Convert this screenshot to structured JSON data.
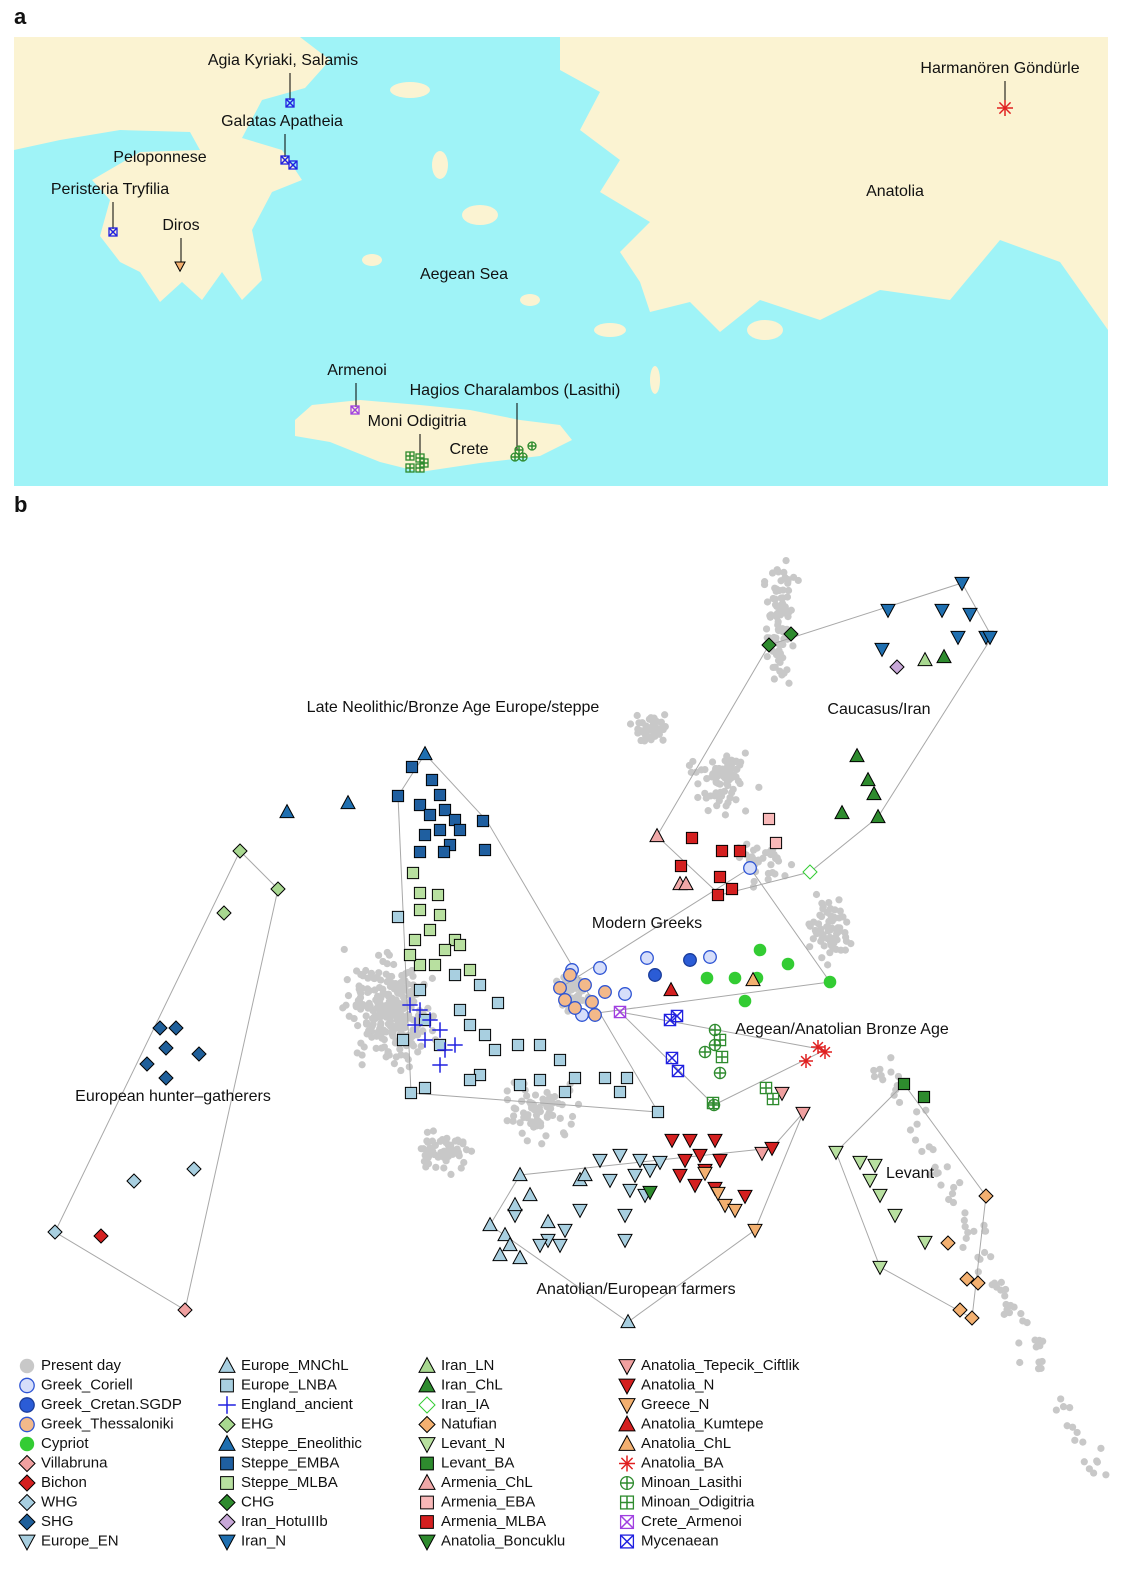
{
  "panel_a": {
    "label": "a",
    "labels": [
      "Agia Kyriaki, Salamis",
      "Galatas Apatheia",
      "Peloponnese",
      "Peristeria Tryfilia",
      "Diros",
      "Aegean Sea",
      "Armenoi",
      "Moni Odigitria",
      "Crete",
      "Hagios Charalambos (Lasithi)",
      "Harmanören Göndürle",
      "Anatolia"
    ]
  },
  "panel_b": {
    "label": "b",
    "regions": [
      "Late Neolithic/Bronze Age Europe/steppe",
      "Caucasus/Iran",
      "Modern Greeks",
      "Aegean/Anatolian Bronze Age",
      "European hunter–gatherers",
      "Levant",
      "Anatolian/European farmers"
    ],
    "legend": [
      {
        "name": "Present day",
        "marker": "circle",
        "color": "#c8c8c8",
        "edge": "none"
      },
      {
        "name": "Greek_Coriell",
        "marker": "circle",
        "color": "#d6defa",
        "edge": "#2f55d4"
      },
      {
        "name": "Greek_Cretan.SGDP",
        "marker": "circle",
        "color": "#2b5cd6",
        "edge": "#1a3c9a"
      },
      {
        "name": "Greek_Thessaloniki",
        "marker": "circle",
        "color": "#f3b98a",
        "edge": "#2f55d4"
      },
      {
        "name": "Cypriot",
        "marker": "circle",
        "color": "#33cc33",
        "edge": "none"
      },
      {
        "name": "Villabruna",
        "marker": "diamond",
        "color": "#f0a0a0",
        "edge": "#000"
      },
      {
        "name": "Bichon",
        "marker": "diamond",
        "color": "#d42020",
        "edge": "#000"
      },
      {
        "name": "WHG",
        "marker": "diamond",
        "color": "#a8cfe0",
        "edge": "#000"
      },
      {
        "name": "SHG",
        "marker": "diamond",
        "color": "#1f5f9a",
        "edge": "#000"
      },
      {
        "name": "Europe_EN",
        "marker": "tri-down",
        "color": "#a8cfe0",
        "edge": "#000"
      },
      {
        "name": "Europe_MNChL",
        "marker": "tri-up",
        "color": "#a8cfe0",
        "edge": "#000"
      },
      {
        "name": "Europe_LNBA",
        "marker": "square",
        "color": "#a8cfe0",
        "edge": "#000"
      },
      {
        "name": "England_ancient",
        "marker": "plus",
        "color": "#2020e0",
        "edge": "none"
      },
      {
        "name": "EHG",
        "marker": "diamond",
        "color": "#a8d890",
        "edge": "#000"
      },
      {
        "name": "Steppe_Eneolithic",
        "marker": "tri-up",
        "color": "#1f6fb0",
        "edge": "#000"
      },
      {
        "name": "Steppe_EMBA",
        "marker": "square",
        "color": "#1f5fa0",
        "edge": "#000"
      },
      {
        "name": "Steppe_MLBA",
        "marker": "square",
        "color": "#b8e0a0",
        "edge": "#000"
      },
      {
        "name": "CHG",
        "marker": "diamond",
        "color": "#2e8b2e",
        "edge": "#000"
      },
      {
        "name": "Iran_HotuIIIb",
        "marker": "diamond",
        "color": "#c8a8d8",
        "edge": "#000"
      },
      {
        "name": "Iran_N",
        "marker": "tri-down",
        "color": "#1f6fb0",
        "edge": "#000"
      },
      {
        "name": "Iran_LN",
        "marker": "tri-up",
        "color": "#a8d890",
        "edge": "#000"
      },
      {
        "name": "Iran_ChL",
        "marker": "tri-up",
        "color": "#2e8b2e",
        "edge": "#000"
      },
      {
        "name": "Iran_IA",
        "marker": "diamond",
        "color": "#ffffff",
        "edge": "#33cc33"
      },
      {
        "name": "Natufian",
        "marker": "diamond",
        "color": "#f3b070",
        "edge": "#000"
      },
      {
        "name": "Levant_N",
        "marker": "tri-down",
        "color": "#b8e0a0",
        "edge": "#000"
      },
      {
        "name": "Levant_BA",
        "marker": "square",
        "color": "#2e8b2e",
        "edge": "#000"
      },
      {
        "name": "Armenia_ChL",
        "marker": "tri-up",
        "color": "#f0a8a8",
        "edge": "#000"
      },
      {
        "name": "Armenia_EBA",
        "marker": "square",
        "color": "#f8b8b8",
        "edge": "#000"
      },
      {
        "name": "Armenia_MLBA",
        "marker": "square",
        "color": "#d42020",
        "edge": "#000"
      },
      {
        "name": "Anatolia_Boncuklu",
        "marker": "tri-down",
        "color": "#2e8b2e",
        "edge": "#000"
      },
      {
        "name": "Anatolia_Tepecik_Ciftlik",
        "marker": "tri-down",
        "color": "#f0a0a0",
        "edge": "#000"
      },
      {
        "name": "Anatolia_N",
        "marker": "tri-down",
        "color": "#d42020",
        "edge": "#000"
      },
      {
        "name": "Greece_N",
        "marker": "tri-down",
        "color": "#f3b070",
        "edge": "#000"
      },
      {
        "name": "Anatolia_Kumtepe",
        "marker": "tri-up",
        "color": "#d42020",
        "edge": "#000"
      },
      {
        "name": "Anatolia_ChL",
        "marker": "tri-up",
        "color": "#f3b070",
        "edge": "#000"
      },
      {
        "name": "Anatolia_BA",
        "marker": "asterisk",
        "color": "#e02020",
        "edge": "none"
      },
      {
        "name": "Minoan_Lasithi",
        "marker": "circle-plus",
        "color": "#2e8b2e",
        "edge": "none"
      },
      {
        "name": "Minoan_Odigitria",
        "marker": "square-plus",
        "color": "#2e8b2e",
        "edge": "none"
      },
      {
        "name": "Crete_Armenoi",
        "marker": "square-x",
        "color": "#a040e0",
        "edge": "none"
      },
      {
        "name": "Mycenaean",
        "marker": "square-x",
        "color": "#2020e0",
        "edge": "none"
      }
    ]
  }
}
